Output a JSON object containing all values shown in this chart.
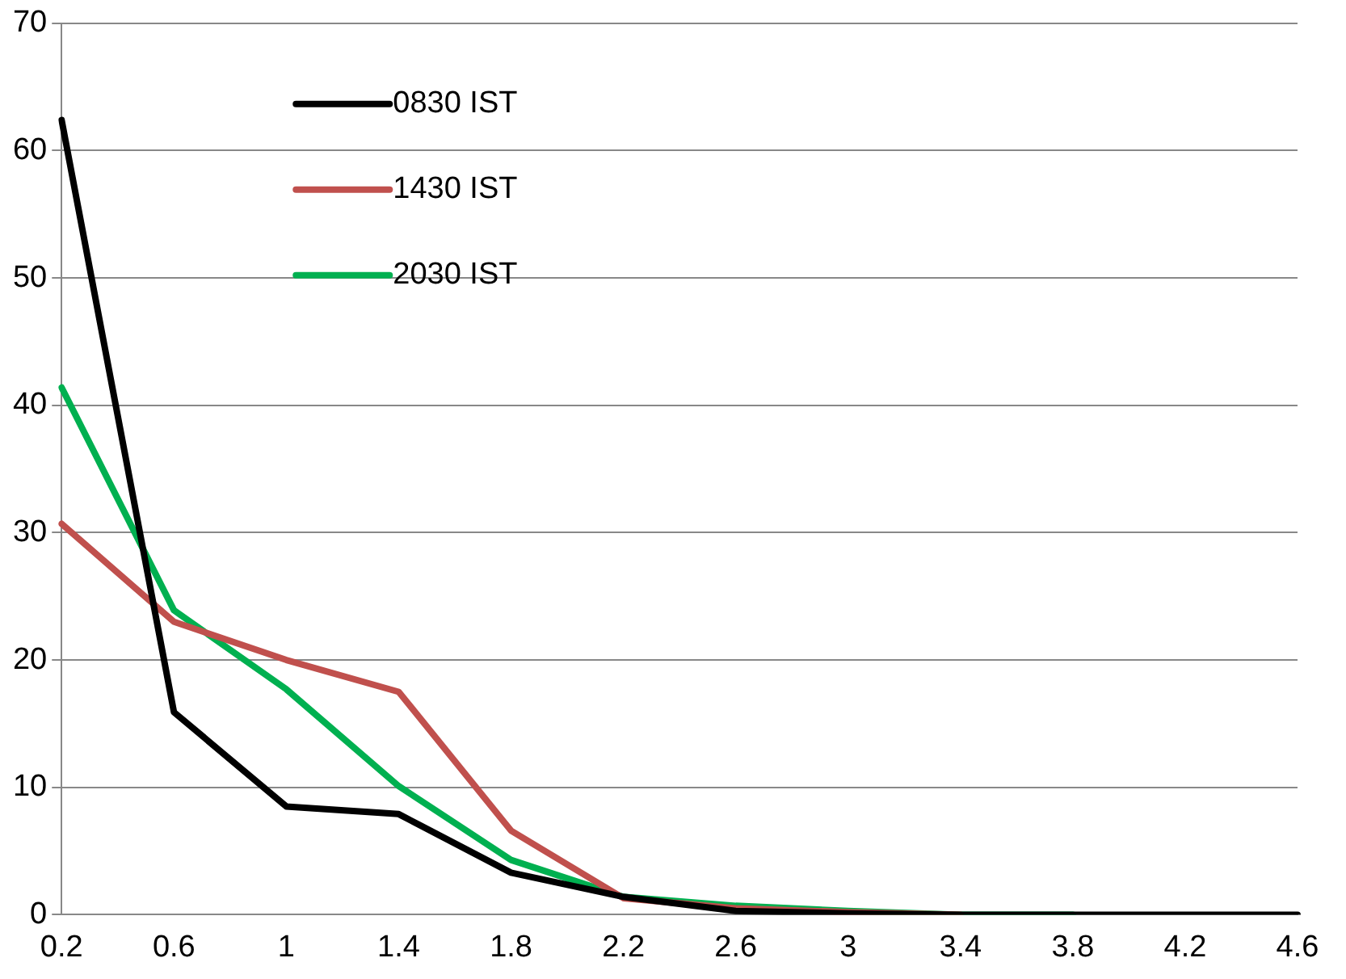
{
  "chart_data": {
    "type": "line",
    "categories": [
      "0.2",
      "0.6",
      "1",
      "1.4",
      "1.8",
      "2.2",
      "2.6",
      "3",
      "3.4",
      "3.8",
      "4.2",
      "4.6"
    ],
    "series": [
      {
        "name": "0830 IST",
        "color": "#000000",
        "values": [
          62.4,
          15.9,
          8.5,
          7.9,
          3.3,
          1.4,
          0.3,
          0.1,
          0,
          0,
          0,
          0
        ]
      },
      {
        "name": "1430 IST",
        "color": "#c0504d",
        "values": [
          30.7,
          23,
          20,
          17.5,
          6.6,
          1.3,
          0.5,
          0.2,
          0,
          null,
          null,
          null
        ]
      },
      {
        "name": "2030 IST",
        "color": "#00b050",
        "values": [
          41.4,
          23.9,
          17.7,
          10.1,
          4.3,
          1.4,
          0.7,
          0.3,
          0,
          0,
          null,
          null
        ]
      }
    ],
    "ylim": [
      0,
      70
    ],
    "yticks": [
      0,
      10,
      20,
      30,
      40,
      50,
      60,
      70
    ],
    "grid": "y",
    "legend": "top left",
    "marker": "none",
    "line_style": "solid"
  }
}
